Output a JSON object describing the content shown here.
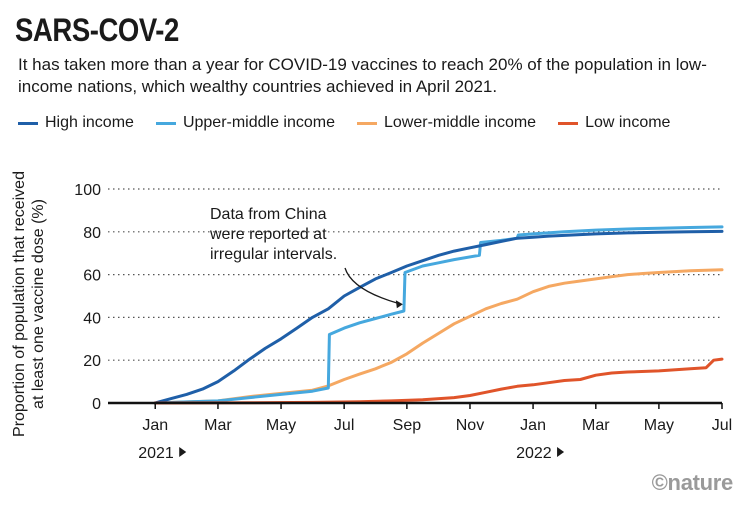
{
  "header": {
    "title": "SARS-COV-2",
    "subtitle": "It has taken more than a year for COVID-19 vaccines to reach 20% of the population in low-income nations, which wealthy countries achieved in April 2021."
  },
  "footer": {
    "logo": "©nature"
  },
  "chart_data": {
    "type": "line",
    "title": "",
    "ylabel": "Proportion of population that received at least one vaccine dose (%)",
    "xlabel": "",
    "ylim": [
      0,
      100
    ],
    "yticks": [
      0,
      20,
      40,
      60,
      80,
      100
    ],
    "xlim": [
      2020.917,
      2022.542
    ],
    "xticks": [
      {
        "t": 2021.042,
        "label": "Jan"
      },
      {
        "t": 2021.208,
        "label": "Mar"
      },
      {
        "t": 2021.375,
        "label": "May"
      },
      {
        "t": 2021.542,
        "label": "Jul"
      },
      {
        "t": 2021.708,
        "label": "Sep"
      },
      {
        "t": 2021.875,
        "label": "Nov"
      },
      {
        "t": 2022.042,
        "label": "Jan"
      },
      {
        "t": 2022.208,
        "label": "Mar"
      },
      {
        "t": 2022.375,
        "label": "May"
      },
      {
        "t": 2022.542,
        "label": "Jul"
      }
    ],
    "year_labels": [
      {
        "t": 2021.042,
        "label": "2021"
      },
      {
        "t": 2022.042,
        "label": "2022"
      }
    ],
    "grid": true,
    "legend_position": "top",
    "annotation": {
      "lines": [
        "Data from China",
        "were reported at",
        "irregular intervals."
      ],
      "points_to": {
        "t": 2021.7,
        "value": 48
      }
    },
    "series": [
      {
        "name": "High income",
        "color": "#1f5fa8",
        "points": [
          [
            2021.042,
            0
          ],
          [
            2021.083,
            2
          ],
          [
            2021.125,
            4
          ],
          [
            2021.167,
            6.5
          ],
          [
            2021.208,
            10
          ],
          [
            2021.25,
            15
          ],
          [
            2021.292,
            20.5
          ],
          [
            2021.333,
            25.5
          ],
          [
            2021.375,
            30
          ],
          [
            2021.417,
            35
          ],
          [
            2021.458,
            40
          ],
          [
            2021.5,
            44
          ],
          [
            2021.542,
            50
          ],
          [
            2021.583,
            54
          ],
          [
            2021.625,
            58
          ],
          [
            2021.667,
            61
          ],
          [
            2021.708,
            64
          ],
          [
            2021.75,
            66.5
          ],
          [
            2021.792,
            69
          ],
          [
            2021.833,
            71
          ],
          [
            2021.875,
            72.5
          ],
          [
            2021.917,
            74
          ],
          [
            2021.958,
            75.5
          ],
          [
            2022.0,
            77
          ],
          [
            2022.042,
            77.5
          ],
          [
            2022.083,
            78
          ],
          [
            2022.125,
            78.3
          ],
          [
            2022.208,
            79
          ],
          [
            2022.292,
            79.5
          ],
          [
            2022.375,
            79.8
          ],
          [
            2022.458,
            80
          ],
          [
            2022.542,
            80.2
          ]
        ]
      },
      {
        "name": "Upper-middle income",
        "color": "#46a8de",
        "points": [
          [
            2021.042,
            0
          ],
          [
            2021.125,
            0.5
          ],
          [
            2021.208,
            1
          ],
          [
            2021.292,
            2.5
          ],
          [
            2021.375,
            4
          ],
          [
            2021.458,
            5.5
          ],
          [
            2021.5,
            7
          ],
          [
            2021.503,
            32
          ],
          [
            2021.542,
            35
          ],
          [
            2021.583,
            37.5
          ],
          [
            2021.625,
            39.5
          ],
          [
            2021.667,
            41.5
          ],
          [
            2021.7,
            43
          ],
          [
            2021.703,
            61
          ],
          [
            2021.75,
            64
          ],
          [
            2021.792,
            65.5
          ],
          [
            2021.833,
            67
          ],
          [
            2021.9,
            69
          ],
          [
            2021.903,
            75
          ],
          [
            2021.958,
            76
          ],
          [
            2022.0,
            77
          ],
          [
            2022.003,
            78.5
          ],
          [
            2022.042,
            79
          ],
          [
            2022.125,
            80
          ],
          [
            2022.208,
            80.8
          ],
          [
            2022.292,
            81.3
          ],
          [
            2022.375,
            81.7
          ],
          [
            2022.458,
            82
          ],
          [
            2022.542,
            82.3
          ]
        ]
      },
      {
        "name": "Lower-middle income",
        "color": "#f5a862",
        "points": [
          [
            2021.042,
            0
          ],
          [
            2021.208,
            1
          ],
          [
            2021.292,
            3
          ],
          [
            2021.375,
            4.5
          ],
          [
            2021.458,
            6
          ],
          [
            2021.5,
            8
          ],
          [
            2021.542,
            11
          ],
          [
            2021.583,
            13.5
          ],
          [
            2021.625,
            16
          ],
          [
            2021.667,
            19
          ],
          [
            2021.708,
            23
          ],
          [
            2021.75,
            28
          ],
          [
            2021.792,
            32.5
          ],
          [
            2021.833,
            37
          ],
          [
            2021.875,
            40.5
          ],
          [
            2021.917,
            44
          ],
          [
            2021.958,
            46.5
          ],
          [
            2022.0,
            48.5
          ],
          [
            2022.042,
            52
          ],
          [
            2022.083,
            54.5
          ],
          [
            2022.125,
            56
          ],
          [
            2022.167,
            57
          ],
          [
            2022.208,
            58
          ],
          [
            2022.25,
            59
          ],
          [
            2022.292,
            60
          ],
          [
            2022.333,
            60.5
          ],
          [
            2022.375,
            61
          ],
          [
            2022.458,
            61.8
          ],
          [
            2022.542,
            62.3
          ]
        ]
      },
      {
        "name": "Low income",
        "color": "#e0542a",
        "points": [
          [
            2021.042,
            0
          ],
          [
            2021.292,
            0.1
          ],
          [
            2021.458,
            0.3
          ],
          [
            2021.583,
            0.6
          ],
          [
            2021.667,
            1
          ],
          [
            2021.75,
            1.5
          ],
          [
            2021.833,
            2.5
          ],
          [
            2021.875,
            3.5
          ],
          [
            2021.917,
            5
          ],
          [
            2021.958,
            6.5
          ],
          [
            2022.0,
            7.8
          ],
          [
            2022.042,
            8.5
          ],
          [
            2022.083,
            9.5
          ],
          [
            2022.125,
            10.5
          ],
          [
            2022.167,
            11
          ],
          [
            2022.208,
            13
          ],
          [
            2022.25,
            14
          ],
          [
            2022.292,
            14.5
          ],
          [
            2022.375,
            15
          ],
          [
            2022.458,
            16
          ],
          [
            2022.5,
            16.5
          ],
          [
            2022.52,
            20
          ],
          [
            2022.542,
            20.5
          ]
        ]
      }
    ]
  }
}
